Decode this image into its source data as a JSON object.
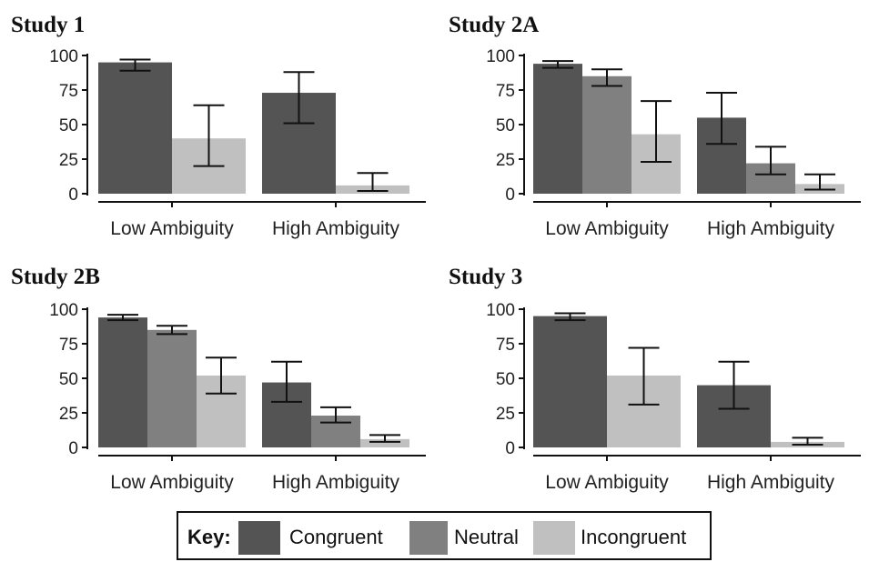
{
  "chart_data": [
    {
      "type": "bar",
      "title": "Study 1",
      "categories": [
        "Low Ambiguity",
        "High Ambiguity"
      ],
      "ylim": [
        0,
        100
      ],
      "yticks": [
        0,
        25,
        50,
        75,
        100
      ],
      "series": [
        {
          "name": "Congruent",
          "values": [
            95,
            73
          ],
          "error_low": [
            89,
            51
          ],
          "error_high": [
            97,
            88
          ]
        },
        {
          "name": "Incongruent",
          "values": [
            40,
            6
          ],
          "error_low": [
            20,
            2
          ],
          "error_high": [
            64,
            15
          ]
        }
      ]
    },
    {
      "type": "bar",
      "title": "Study 2A",
      "categories": [
        "Low Ambiguity",
        "High Ambiguity"
      ],
      "ylim": [
        0,
        100
      ],
      "yticks": [
        0,
        25,
        50,
        75,
        100
      ],
      "series": [
        {
          "name": "Congruent",
          "values": [
            94,
            55
          ],
          "error_low": [
            91,
            36
          ],
          "error_high": [
            96,
            73
          ]
        },
        {
          "name": "Neutral",
          "values": [
            85,
            22
          ],
          "error_low": [
            78,
            14
          ],
          "error_high": [
            90,
            34
          ]
        },
        {
          "name": "Incongruent",
          "values": [
            43,
            7
          ],
          "error_low": [
            23,
            3
          ],
          "error_high": [
            67,
            14
          ]
        }
      ]
    },
    {
      "type": "bar",
      "title": "Study 2B",
      "categories": [
        "Low Ambiguity",
        "High Ambiguity"
      ],
      "ylim": [
        0,
        100
      ],
      "yticks": [
        0,
        25,
        50,
        75,
        100
      ],
      "series": [
        {
          "name": "Congruent",
          "values": [
            94,
            47
          ],
          "error_low": [
            92,
            33
          ],
          "error_high": [
            96,
            62
          ]
        },
        {
          "name": "Neutral",
          "values": [
            85,
            23
          ],
          "error_low": [
            82,
            18
          ],
          "error_high": [
            88,
            29
          ]
        },
        {
          "name": "Incongruent",
          "values": [
            52,
            6
          ],
          "error_low": [
            39,
            4
          ],
          "error_high": [
            65,
            9
          ]
        }
      ]
    },
    {
      "type": "bar",
      "title": "Study 3",
      "categories": [
        "Low Ambiguity",
        "High Ambiguity"
      ],
      "ylim": [
        0,
        100
      ],
      "yticks": [
        0,
        25,
        50,
        75,
        100
      ],
      "series": [
        {
          "name": "Congruent",
          "values": [
            95,
            45
          ],
          "error_low": [
            92,
            28
          ],
          "error_high": [
            97,
            62
          ]
        },
        {
          "name": "Incongruent",
          "values": [
            52,
            4
          ],
          "error_low": [
            31,
            2
          ],
          "error_high": [
            72,
            7
          ]
        }
      ]
    }
  ],
  "legend": {
    "title": "Key:",
    "items": [
      {
        "label": "Congruent",
        "color": "#545454"
      },
      {
        "label": "Neutral",
        "color": "#808080"
      },
      {
        "label": "Incongruent",
        "color": "#c0c0c0"
      }
    ]
  },
  "colors": {
    "Congruent": "#545454",
    "Neutral": "#808080",
    "Incongruent": "#c0c0c0",
    "axis": "#111111",
    "error": "#111111"
  }
}
